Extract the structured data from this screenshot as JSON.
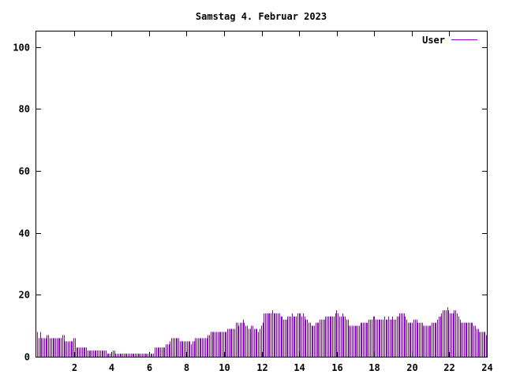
{
  "chart_data": {
    "type": "bar",
    "title": "Samstag 4. Februar 2023",
    "xlabel": "",
    "ylabel": "",
    "xlim": [
      0,
      24
    ],
    "ylim": [
      0,
      105
    ],
    "xticks": [
      2,
      4,
      6,
      8,
      10,
      12,
      14,
      16,
      18,
      20,
      22,
      24
    ],
    "yticks": [
      0,
      20,
      40,
      60,
      80,
      100
    ],
    "grid": false,
    "legend_position": "top-right",
    "bar_interval_hours": 0.0833,
    "series": [
      {
        "name": "User",
        "color": "#9400d3",
        "values": [
          8,
          6,
          8,
          6,
          6,
          6,
          6,
          7,
          7,
          6,
          6,
          6,
          6,
          6,
          6,
          6,
          6,
          6,
          7,
          7,
          5,
          5,
          5,
          5,
          5,
          5,
          6,
          6,
          3,
          3,
          3,
          3,
          3,
          3,
          3,
          3,
          2,
          2,
          2,
          2,
          2,
          2,
          2,
          2,
          2,
          2,
          2,
          2,
          2,
          2,
          1,
          1,
          1,
          1,
          2,
          2,
          1,
          1,
          1,
          1,
          1,
          1,
          1,
          1,
          1,
          1,
          1,
          1,
          1,
          1,
          1,
          1,
          1,
          1,
          1,
          1,
          1,
          1,
          1,
          1,
          1,
          1,
          1,
          1,
          3,
          3,
          3,
          3,
          3,
          3,
          3,
          3,
          4,
          4,
          4,
          5,
          6,
          6,
          6,
          6,
          6,
          6,
          5,
          5,
          5,
          5,
          5,
          5,
          5,
          5,
          4,
          5,
          5,
          6,
          6,
          6,
          6,
          6,
          6,
          6,
          6,
          6,
          7,
          7,
          8,
          8,
          8,
          8,
          8,
          8,
          8,
          8,
          8,
          8,
          8,
          8,
          9,
          9,
          9,
          9,
          9,
          9,
          11,
          11,
          10,
          11,
          11,
          12,
          11,
          10,
          10,
          9,
          9,
          10,
          10,
          9,
          9,
          9,
          8,
          9,
          10,
          11,
          14,
          14,
          14,
          14,
          14,
          14,
          15,
          14,
          14,
          14,
          14,
          14,
          13,
          13,
          12,
          12,
          12,
          13,
          13,
          13,
          14,
          13,
          13,
          13,
          14,
          14,
          14,
          13,
          14,
          13,
          12,
          12,
          11,
          11,
          10,
          10,
          10,
          11,
          11,
          11,
          12,
          12,
          12,
          12,
          13,
          13,
          13,
          13,
          13,
          13,
          13,
          14,
          15,
          14,
          13,
          13,
          14,
          13,
          13,
          12,
          12,
          10,
          10,
          10,
          10,
          10,
          10,
          10,
          10,
          11,
          11,
          11,
          11,
          11,
          11,
          12,
          12,
          12,
          13,
          13,
          12,
          12,
          12,
          12,
          12,
          12,
          13,
          12,
          12,
          13,
          12,
          12,
          13,
          12,
          12,
          13,
          13,
          14,
          14,
          14,
          14,
          13,
          12,
          11,
          11,
          11,
          11,
          12,
          12,
          12,
          11,
          11,
          11,
          11,
          10,
          10,
          10,
          10,
          10,
          10,
          11,
          11,
          11,
          11,
          12,
          13,
          13,
          14,
          15,
          15,
          15,
          16,
          15,
          14,
          14,
          14,
          15,
          15,
          14,
          13,
          12,
          11,
          11,
          11,
          11,
          11,
          11,
          11,
          11,
          11,
          10,
          10,
          9,
          9,
          8,
          8,
          8,
          8,
          8,
          7
        ]
      }
    ]
  }
}
